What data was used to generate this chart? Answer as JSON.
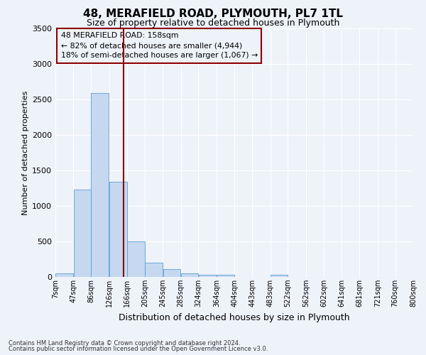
{
  "title": "48, MERAFIELD ROAD, PLYMOUTH, PL7 1TL",
  "subtitle": "Size of property relative to detached houses in Plymouth",
  "xlabel": "Distribution of detached houses by size in Plymouth",
  "ylabel": "Number of detached properties",
  "bin_edges": [
    7,
    47,
    86,
    126,
    166,
    205,
    245,
    285,
    324,
    364,
    404,
    443,
    483,
    522,
    562,
    602,
    641,
    681,
    721,
    760,
    800
  ],
  "bin_labels": [
    "7sqm",
    "47sqm",
    "86sqm",
    "126sqm",
    "166sqm",
    "205sqm",
    "245sqm",
    "285sqm",
    "324sqm",
    "364sqm",
    "404sqm",
    "443sqm",
    "483sqm",
    "522sqm",
    "562sqm",
    "602sqm",
    "641sqm",
    "681sqm",
    "721sqm",
    "760sqm",
    "800sqm"
  ],
  "counts": [
    50,
    1230,
    2590,
    1340,
    500,
    200,
    110,
    50,
    30,
    30,
    0,
    0,
    30,
    0,
    0,
    0,
    0,
    0,
    0,
    0
  ],
  "bar_color": "#c5d8f0",
  "bar_edge_color": "#5a9fd4",
  "vline_x": 158,
  "vline_color": "#8b0000",
  "annotation_title": "48 MERAFIELD ROAD: 158sqm",
  "annotation_line1": "← 82% of detached houses are smaller (4,944)",
  "annotation_line2": "18% of semi-detached houses are larger (1,067) →",
  "annotation_box_color": "#8b0000",
  "ylim": [
    0,
    3500
  ],
  "yticks": [
    0,
    500,
    1000,
    1500,
    2000,
    2500,
    3000,
    3500
  ],
  "footer_line1": "Contains HM Land Registry data © Crown copyright and database right 2024.",
  "footer_line2": "Contains public sector information licensed under the Open Government Licence v3.0.",
  "background_color": "#eef2f9",
  "grid_color": "#ffffff",
  "title_fontsize": 11,
  "subtitle_fontsize": 9,
  "ylabel_fontsize": 8,
  "xlabel_fontsize": 9
}
